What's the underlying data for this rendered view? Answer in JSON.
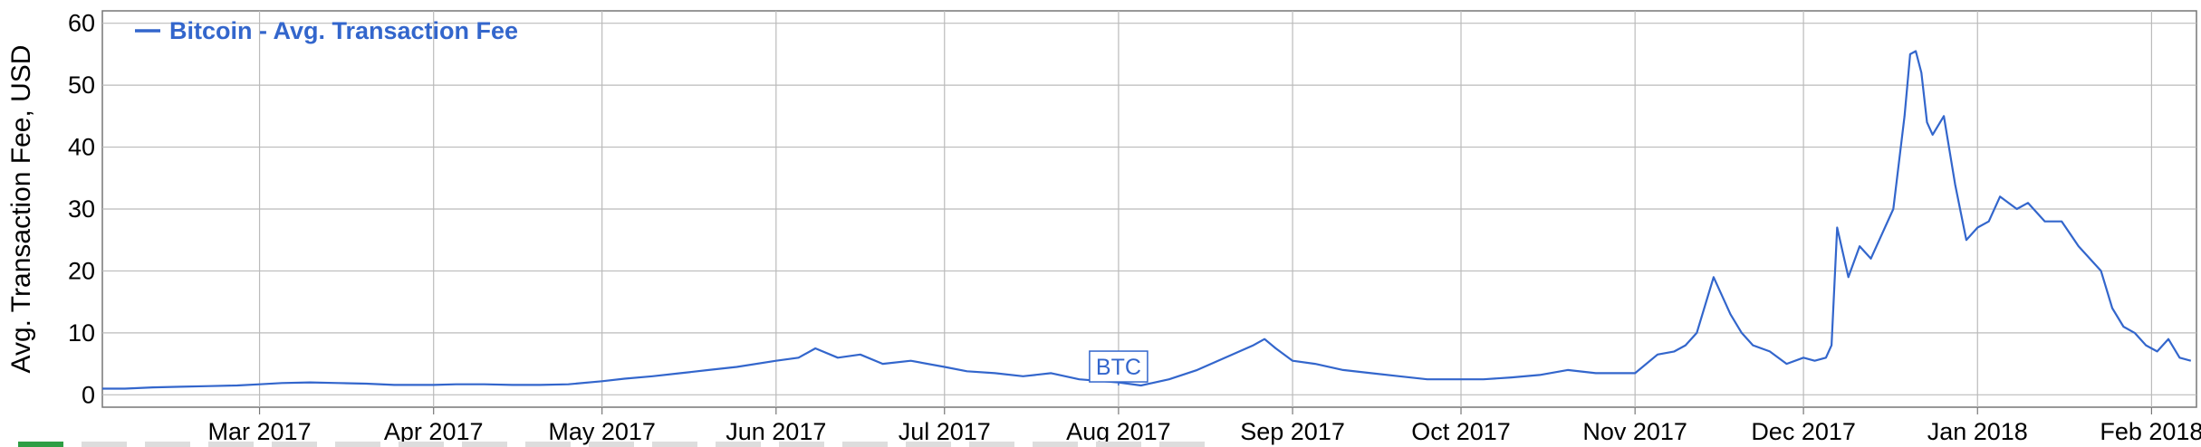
{
  "chart_data": {
    "type": "line",
    "title": "",
    "xlabel": "",
    "ylabel": "Avg. Transaction Fee, USD",
    "ylim": [
      -2,
      62
    ],
    "xlim": [
      "2017-02-01",
      "2018-02-09"
    ],
    "yticks": [
      0,
      10,
      20,
      30,
      40,
      50,
      60
    ],
    "xticks": [
      {
        "date": "2017-03-01",
        "label": "Mar 2017"
      },
      {
        "date": "2017-04-01",
        "label": "Apr 2017"
      },
      {
        "date": "2017-05-01",
        "label": "May 2017"
      },
      {
        "date": "2017-06-01",
        "label": "Jun 2017"
      },
      {
        "date": "2017-07-01",
        "label": "Jul 2017"
      },
      {
        "date": "2017-08-01",
        "label": "Aug 2017"
      },
      {
        "date": "2017-09-01",
        "label": "Sep 2017"
      },
      {
        "date": "2017-10-01",
        "label": "Oct 2017"
      },
      {
        "date": "2017-11-01",
        "label": "Nov 2017"
      },
      {
        "date": "2017-12-01",
        "label": "Dec 2017"
      },
      {
        "date": "2018-01-01",
        "label": "Jan 2018"
      },
      {
        "date": "2018-02-01",
        "label": "Feb 2018"
      }
    ],
    "grid": true,
    "legend": {
      "position": "top-left"
    },
    "series": [
      {
        "name": "Bitcoin - Avg. Transaction Fee",
        "color": "#3366cc",
        "x": [
          "2017-02-01",
          "2017-02-05",
          "2017-02-10",
          "2017-02-15",
          "2017-02-20",
          "2017-02-25",
          "2017-03-01",
          "2017-03-05",
          "2017-03-10",
          "2017-03-15",
          "2017-03-20",
          "2017-03-25",
          "2017-04-01",
          "2017-04-05",
          "2017-04-10",
          "2017-04-15",
          "2017-04-20",
          "2017-04-25",
          "2017-05-01",
          "2017-05-05",
          "2017-05-10",
          "2017-05-15",
          "2017-05-20",
          "2017-05-25",
          "2017-06-01",
          "2017-06-05",
          "2017-06-08",
          "2017-06-12",
          "2017-06-16",
          "2017-06-20",
          "2017-06-25",
          "2017-07-01",
          "2017-07-05",
          "2017-07-10",
          "2017-07-15",
          "2017-07-20",
          "2017-07-25",
          "2017-08-01",
          "2017-08-05",
          "2017-08-10",
          "2017-08-15",
          "2017-08-20",
          "2017-08-25",
          "2017-08-27",
          "2017-08-29",
          "2017-09-01",
          "2017-09-05",
          "2017-09-10",
          "2017-09-15",
          "2017-09-20",
          "2017-09-25",
          "2017-10-01",
          "2017-10-05",
          "2017-10-10",
          "2017-10-15",
          "2017-10-20",
          "2017-10-25",
          "2017-11-01",
          "2017-11-05",
          "2017-11-08",
          "2017-11-10",
          "2017-11-12",
          "2017-11-15",
          "2017-11-18",
          "2017-11-20",
          "2017-11-22",
          "2017-11-25",
          "2017-11-28",
          "2017-12-01",
          "2017-12-03",
          "2017-12-05",
          "2017-12-06",
          "2017-12-07",
          "2017-12-09",
          "2017-12-11",
          "2017-12-13",
          "2017-12-15",
          "2017-12-17",
          "2017-12-19",
          "2017-12-20",
          "2017-12-21",
          "2017-12-22",
          "2017-12-23",
          "2017-12-24",
          "2017-12-26",
          "2017-12-28",
          "2017-12-30",
          "2018-01-01",
          "2018-01-03",
          "2018-01-05",
          "2018-01-08",
          "2018-01-10",
          "2018-01-13",
          "2018-01-16",
          "2018-01-19",
          "2018-01-21",
          "2018-01-23",
          "2018-01-25",
          "2018-01-27",
          "2018-01-29",
          "2018-01-31",
          "2018-02-02",
          "2018-02-04",
          "2018-02-06",
          "2018-02-08"
        ],
        "values": [
          1.0,
          1.0,
          1.2,
          1.3,
          1.4,
          1.5,
          1.7,
          1.9,
          2.0,
          1.9,
          1.8,
          1.6,
          1.6,
          1.7,
          1.7,
          1.6,
          1.6,
          1.7,
          2.2,
          2.6,
          3.0,
          3.5,
          4.0,
          4.5,
          5.5,
          6.0,
          7.5,
          6.0,
          6.5,
          5.0,
          5.5,
          4.5,
          3.8,
          3.5,
          3.0,
          3.5,
          2.5,
          2.0,
          1.5,
          2.5,
          4.0,
          6.0,
          8.0,
          9.0,
          7.5,
          5.5,
          5.0,
          4.0,
          3.5,
          3.0,
          2.5,
          2.5,
          2.5,
          2.8,
          3.2,
          4.0,
          3.5,
          3.5,
          6.5,
          7.0,
          8.0,
          10.0,
          19.0,
          13.0,
          10.0,
          8.0,
          7.0,
          5.0,
          6.0,
          5.5,
          6.0,
          8.0,
          27.0,
          19.0,
          24.0,
          22.0,
          26.0,
          30.0,
          45.0,
          55.0,
          55.5,
          52.0,
          44.0,
          42.0,
          45.0,
          34.0,
          25.0,
          27.0,
          28.0,
          32.0,
          30.0,
          31.0,
          28.0,
          28.0,
          24.0,
          22.0,
          20.0,
          14.0,
          11.0,
          10.0,
          8.0,
          7.0,
          9.0,
          6.0,
          5.5
        ]
      }
    ],
    "annotations": [
      {
        "date": "2017-08-01",
        "value": 1.5,
        "label": "BTC"
      }
    ]
  }
}
